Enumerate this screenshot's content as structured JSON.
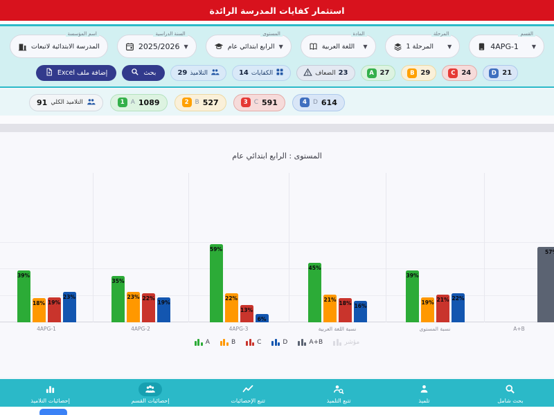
{
  "header": {
    "title": "استثمار كفايات المدرسة الرائدة"
  },
  "colors": {
    "header_bg": "#d8121d",
    "accent_teal": "#2bb9c8",
    "button_navy": "#323a8c",
    "bar_green": "#2cab37",
    "bar_orange": "#ff9800",
    "bar_red": "#c9342c",
    "bar_blue": "#1356b0",
    "bar_slate": "#5b6372"
  },
  "filters": {
    "fields": [
      {
        "label": "اسم المؤسسة",
        "value": "المدرسة الابتدائية لاتبعات",
        "icon": "building-icon"
      },
      {
        "label": "السنة الدراسية",
        "value": "2025/2026",
        "icon": "calendar-icon"
      },
      {
        "label": "المستوى",
        "value": "الرابع ابتدائي عام",
        "icon": "graduation-cap-icon"
      },
      {
        "label": "المادة",
        "value": "اللغة العربية",
        "icon": "book-icon"
      },
      {
        "label": "المرحلة",
        "value": "المرحلة 1",
        "icon": "layers-icon"
      },
      {
        "label": "القسم",
        "value": "4APG-1",
        "icon": "device-icon"
      }
    ],
    "arrow_glyph": "▼"
  },
  "toolbar": {
    "excel_button": "إضافة ملف Excel",
    "search_button": "بحث",
    "count_badges": [
      {
        "value": "29",
        "label": "التلاميذ",
        "icon": "students-icon",
        "style": "blue"
      },
      {
        "value": "14",
        "label": "الكفايات",
        "icon": "grid-icon",
        "style": "blue"
      },
      {
        "value": "23",
        "label": "الضعاف",
        "icon": "warning-icon",
        "style": "gray"
      }
    ],
    "grade_badges": [
      {
        "letter": "A",
        "value": "27",
        "color": "#34b04a"
      },
      {
        "letter": "B",
        "value": "29",
        "color": "#ffa000"
      },
      {
        "letter": "C",
        "value": "24",
        "color": "#e53935"
      },
      {
        "letter": "D",
        "value": "21",
        "color": "#3f6fbf"
      }
    ]
  },
  "stats": {
    "total": {
      "value": "91",
      "label": "التلاميذ الكلي",
      "icon": "students-icon"
    },
    "grades": [
      {
        "num": "1",
        "letter": "A",
        "value": "1089",
        "color": "#34b04a"
      },
      {
        "num": "2",
        "letter": "B",
        "value": "527",
        "color": "#ffa000"
      },
      {
        "num": "3",
        "letter": "C",
        "value": "591",
        "color": "#e53935"
      },
      {
        "num": "4",
        "letter": "D",
        "value": "614",
        "color": "#3f6fbf"
      }
    ]
  },
  "chart_data": {
    "type": "bar",
    "title": "المستوى : الرابع ابتدائي عام",
    "categories": [
      "4APG-1",
      "4APG-2",
      "4APG-3",
      "نسبة اللغة العربية",
      "نسبة المستوى",
      "A+B"
    ],
    "series": [
      {
        "name": "A",
        "color": "#2cab37",
        "values": [
          39,
          35,
          59,
          45,
          39,
          null
        ]
      },
      {
        "name": "B",
        "color": "#ff9800",
        "values": [
          18,
          23,
          22,
          21,
          19,
          null
        ]
      },
      {
        "name": "C",
        "color": "#c9342c",
        "values": [
          19,
          22,
          13,
          18,
          21,
          null
        ]
      },
      {
        "name": "D",
        "color": "#1356b0",
        "values": [
          23,
          19,
          6,
          16,
          22,
          null
        ]
      },
      {
        "name": "A+B",
        "color": "#5b6372",
        "values": [
          null,
          null,
          null,
          null,
          null,
          57
        ]
      }
    ],
    "unit": "%",
    "legend": [
      "A",
      "B",
      "C",
      "D",
      "A+B",
      "مؤشر"
    ],
    "legend_disabled": [
      "مؤشر"
    ],
    "ylim": [
      0,
      70
    ],
    "grid": true
  },
  "footer": {
    "items": [
      {
        "label": "إحصائيات التلاميذ",
        "icon": "bar-chart-icon",
        "active": false
      },
      {
        "label": "إحصائيات القسم",
        "icon": "group-icon",
        "active": true
      },
      {
        "label": "تتبع الإحصائيات",
        "icon": "trend-icon",
        "active": false
      },
      {
        "label": "تتبع التلميذ",
        "icon": "person-search-icon",
        "active": false
      },
      {
        "label": "تلميذ",
        "icon": "person-icon",
        "active": false
      },
      {
        "label": "بحث شامل",
        "icon": "search-icon",
        "active": false
      }
    ]
  }
}
